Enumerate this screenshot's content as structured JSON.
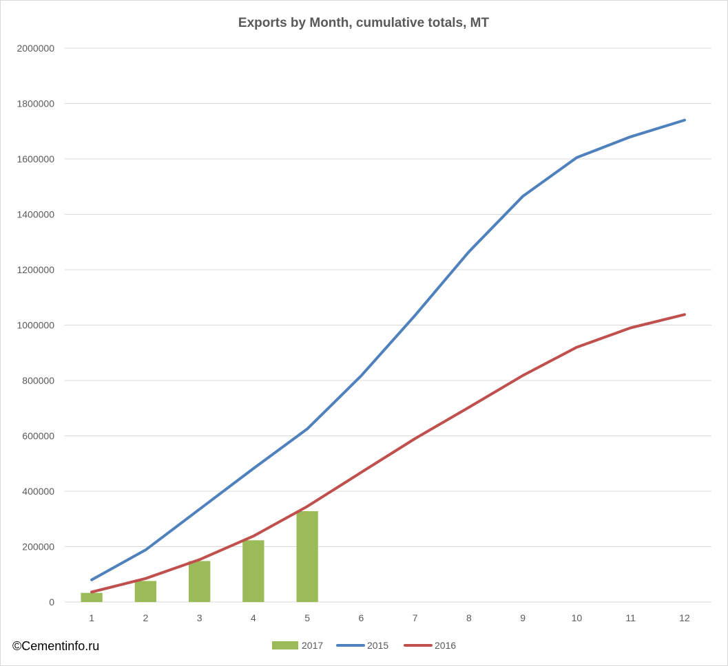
{
  "chart_data": {
    "type": "bar+line",
    "title": "Exports by Month, cumulative totals, MT",
    "categories": [
      "1",
      "2",
      "3",
      "4",
      "5",
      "6",
      "7",
      "8",
      "9",
      "10",
      "11",
      "12"
    ],
    "ylim": [
      0,
      2000000
    ],
    "y_ticks": [
      "0",
      "200000",
      "400000",
      "600000",
      "800000",
      "1000000",
      "1200000",
      "1400000",
      "1600000",
      "1800000",
      "2000000"
    ],
    "grid": "horizontal",
    "legend_position": "bottom",
    "series": [
      {
        "name": "2017",
        "kind": "bar",
        "color": "#9bbb59",
        "values": [
          33000,
          76000,
          148000,
          223000,
          328000,
          null,
          null,
          null,
          null,
          null,
          null,
          null
        ]
      },
      {
        "name": "2015",
        "kind": "line",
        "color": "#4f81bd",
        "values": [
          80000,
          188000,
          335000,
          482000,
          625000,
          817000,
          1035000,
          1265000,
          1465000,
          1605000,
          1680000,
          1740000
        ]
      },
      {
        "name": "2016",
        "kind": "line",
        "color": "#c0504d",
        "values": [
          36000,
          85000,
          153000,
          238000,
          345000,
          468000,
          590000,
          703000,
          818000,
          920000,
          990000,
          1038000
        ]
      }
    ]
  },
  "credit": "©Cementinfo.ru"
}
